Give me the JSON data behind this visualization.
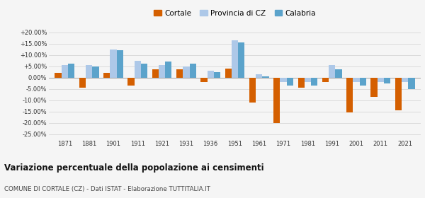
{
  "years": [
    1871,
    1881,
    1901,
    1911,
    1921,
    1931,
    1936,
    1951,
    1961,
    1971,
    1981,
    1991,
    2001,
    2011,
    2021
  ],
  "cortale": [
    2.0,
    -4.5,
    2.0,
    -3.5,
    3.5,
    3.5,
    -2.0,
    4.0,
    -11.0,
    -20.0,
    -4.5,
    -2.0,
    -15.5,
    -8.5,
    -14.5
  ],
  "provincia_cz": [
    5.5,
    5.5,
    12.5,
    7.5,
    5.5,
    5.0,
    3.0,
    16.5,
    1.5,
    -2.0,
    -2.0,
    5.5,
    -2.0,
    -2.0,
    -2.0
  ],
  "calabria": [
    6.0,
    5.0,
    12.0,
    6.0,
    7.0,
    6.0,
    2.5,
    15.5,
    0.5,
    -3.5,
    -3.5,
    3.5,
    -3.5,
    -2.5,
    -5.0
  ],
  "cortale_color": "#d45f00",
  "provincia_color": "#adc8e8",
  "calabria_color": "#5ba3cb",
  "title": "Variazione percentuale della popolazione ai censimenti",
  "subtitle": "COMUNE DI CORTALE (CZ) - Dati ISTAT - Elaborazione TUTTITALIA.IT",
  "ylim": [
    -27,
    22
  ],
  "yticks": [
    -25,
    -20,
    -15,
    -10,
    -5,
    0,
    5,
    10,
    15,
    20
  ],
  "ytick_labels": [
    "-25.00%",
    "-20.00%",
    "-15.00%",
    "-10.00%",
    "-5.00%",
    "0.00%",
    "+5.00%",
    "+10.00%",
    "+15.00%",
    "+20.00%"
  ],
  "bar_width": 0.27,
  "bg_color": "#f5f5f5",
  "grid_color": "#d0d0d0",
  "legend_labels": [
    "Cortale",
    "Provincia di CZ",
    "Calabria"
  ]
}
